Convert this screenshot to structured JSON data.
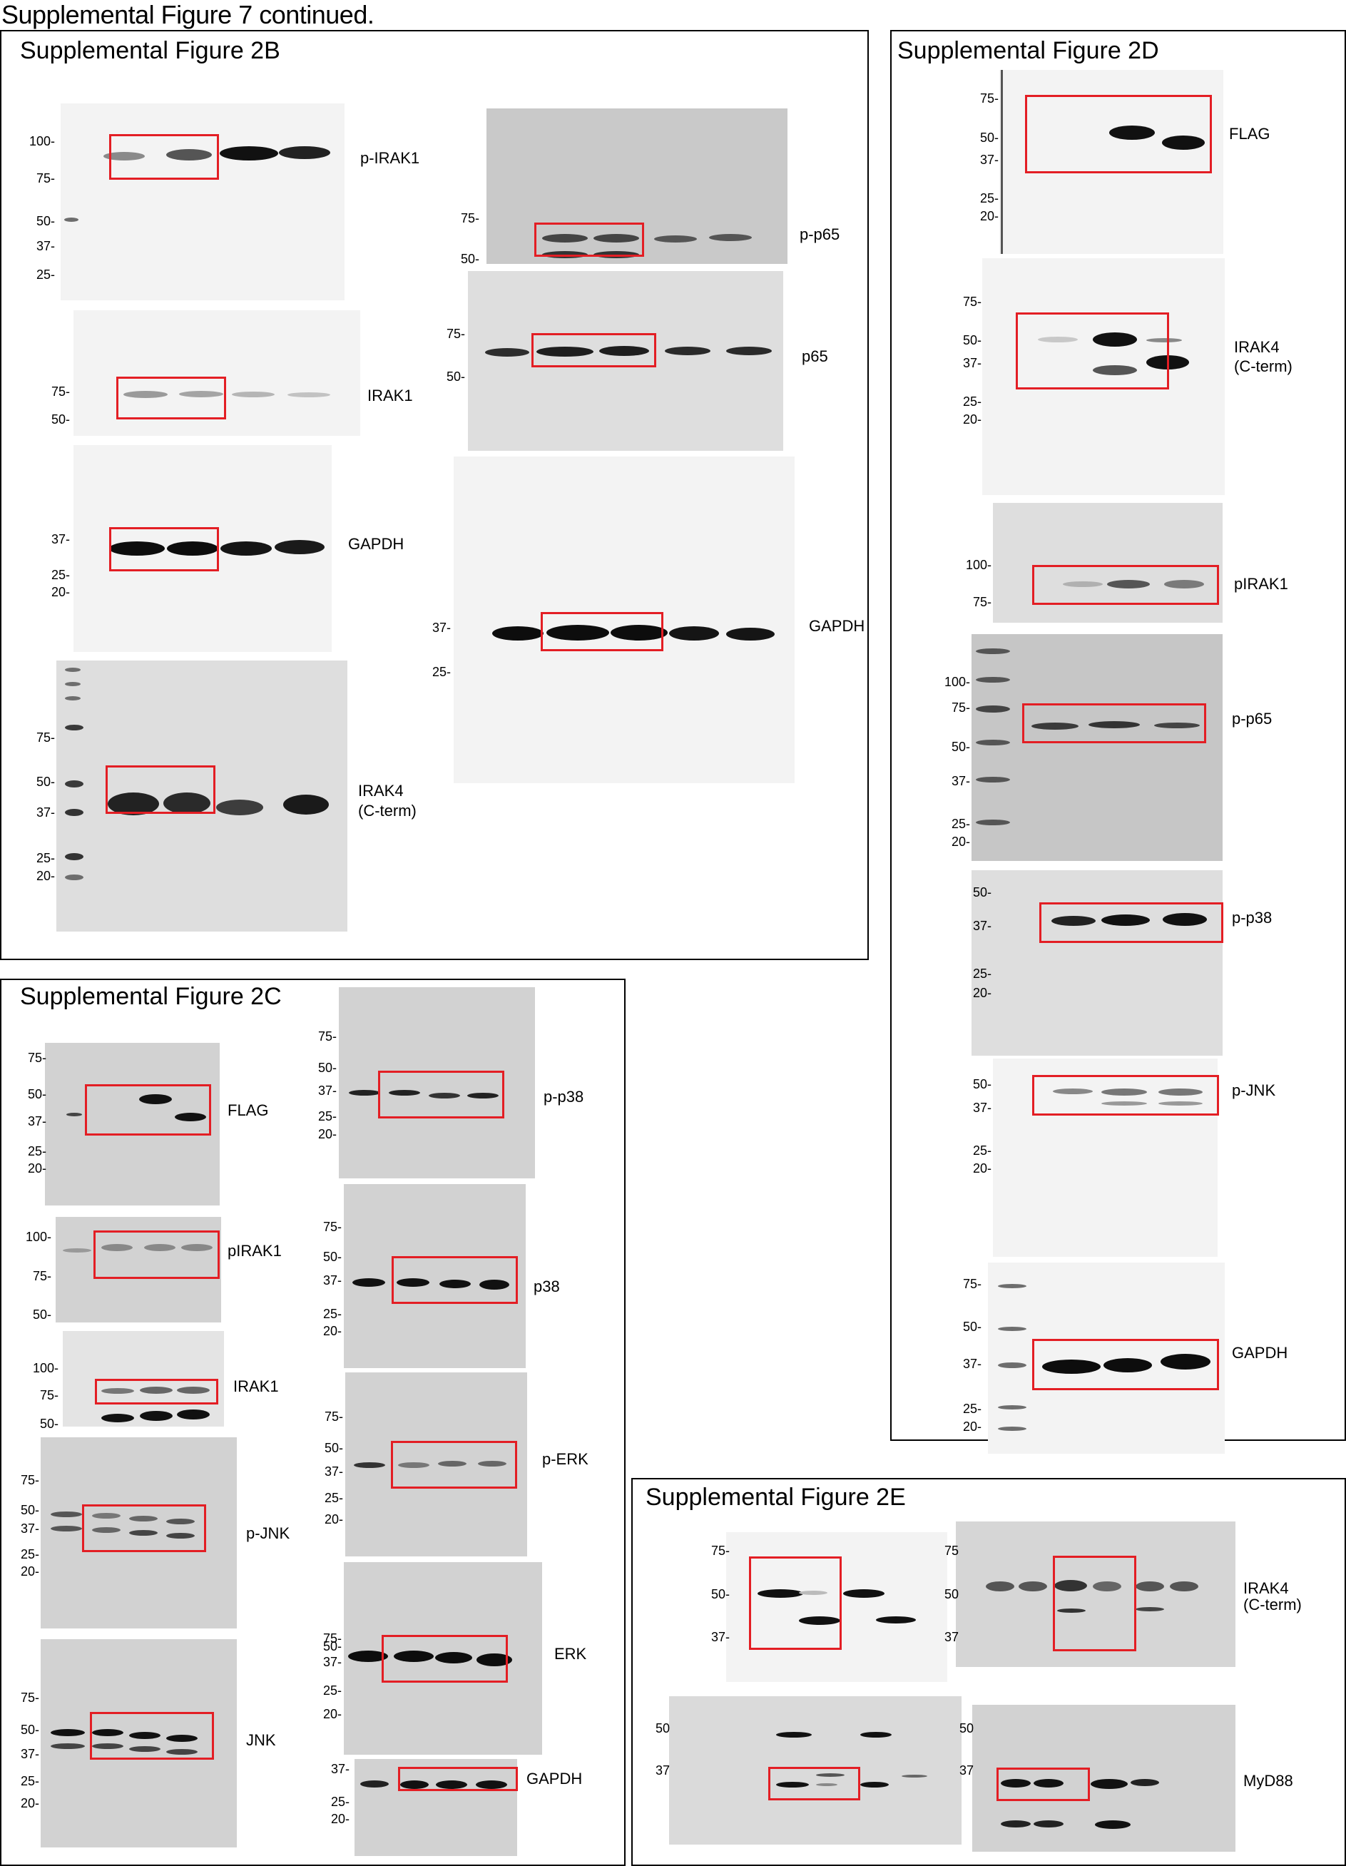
{
  "page_title": "Supplemental Figure 7 continued.",
  "panels": {
    "p2B": "Supplemental Figure 2B",
    "p2C": "Supplemental Figure 2C",
    "p2D": "Supplemental Figure 2D",
    "p2E": "Supplemental Figure 2E"
  },
  "labels": {
    "p_irak1": "p-IRAK1",
    "irak1": "IRAK1",
    "pirak1": "pIRAK1",
    "gapdh": "GAPDH",
    "gapdh_cut": "GAPDH",
    "irak4": "IRAK4",
    "cterm": "(C-term)",
    "p_p65": "p-p65",
    "p65": "p65",
    "flag": "FLAG",
    "p_p38": "p-p38",
    "p38": "p38",
    "p_erk": "p-ERK",
    "erk": "ERK",
    "p_jnk": "p-JNK",
    "jnk": "JNK",
    "myd88": "MyD88"
  },
  "mw": {
    "m100": "100-",
    "m75": "75-",
    "m50": "50-",
    "m37": "37-",
    "m25": "25-",
    "m20": "20-",
    "plain75": "75",
    "plain50": "50",
    "plain37": "37"
  },
  "colors": {
    "highlight_box": "#e31e24",
    "band": "#111111"
  }
}
